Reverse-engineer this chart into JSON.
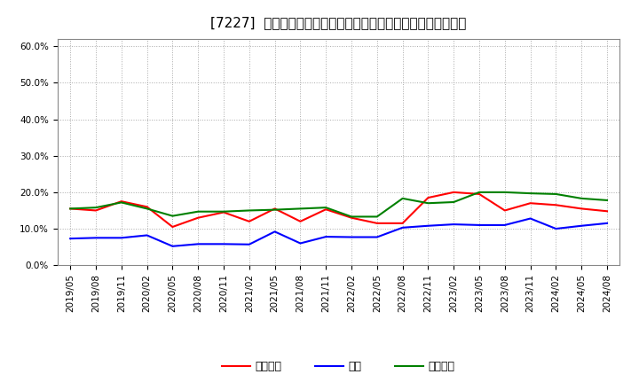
{
  "title": "[7227]  売上債権、在庫、買入債務の総資産に対する比率の推移",
  "legend_labels": [
    "売上債権",
    "在庫",
    "買入債務"
  ],
  "line_colors": [
    "#ff0000",
    "#0000ff",
    "#008000"
  ],
  "x_labels": [
    "2019/05",
    "2019/08",
    "2019/11",
    "2020/02",
    "2020/05",
    "2020/08",
    "2020/11",
    "2021/02",
    "2021/05",
    "2021/08",
    "2021/11",
    "2022/02",
    "2022/05",
    "2022/08",
    "2022/11",
    "2023/02",
    "2023/05",
    "2023/08",
    "2023/11",
    "2024/02",
    "2024/05",
    "2024/08"
  ],
  "ylim": [
    0.0,
    0.62
  ],
  "yticks": [
    0.0,
    0.1,
    0.2,
    0.3,
    0.4,
    0.5,
    0.6
  ],
  "series": {
    "売上債権": [
      0.155,
      0.15,
      0.175,
      0.16,
      0.105,
      0.13,
      0.145,
      0.12,
      0.155,
      0.12,
      0.153,
      0.13,
      0.115,
      0.115,
      0.185,
      0.2,
      0.195,
      0.15,
      0.17,
      0.165,
      0.155,
      0.148
    ],
    "在庫": [
      0.073,
      0.075,
      0.075,
      0.082,
      0.052,
      0.058,
      0.058,
      0.057,
      0.092,
      0.06,
      0.078,
      0.077,
      0.077,
      0.103,
      0.108,
      0.112,
      0.11,
      0.11,
      0.128,
      0.1,
      0.108,
      0.115
    ],
    "買入債務": [
      0.155,
      0.158,
      0.172,
      0.155,
      0.135,
      0.147,
      0.147,
      0.15,
      0.152,
      0.155,
      0.158,
      0.133,
      0.133,
      0.183,
      0.17,
      0.173,
      0.2,
      0.2,
      0.197,
      0.195,
      0.183,
      0.178
    ]
  },
  "background_color": "#ffffff",
  "plot_bg_color": "#ffffff",
  "grid_color": "#aaaaaa",
  "title_fontsize": 11,
  "tick_fontsize": 7.5
}
